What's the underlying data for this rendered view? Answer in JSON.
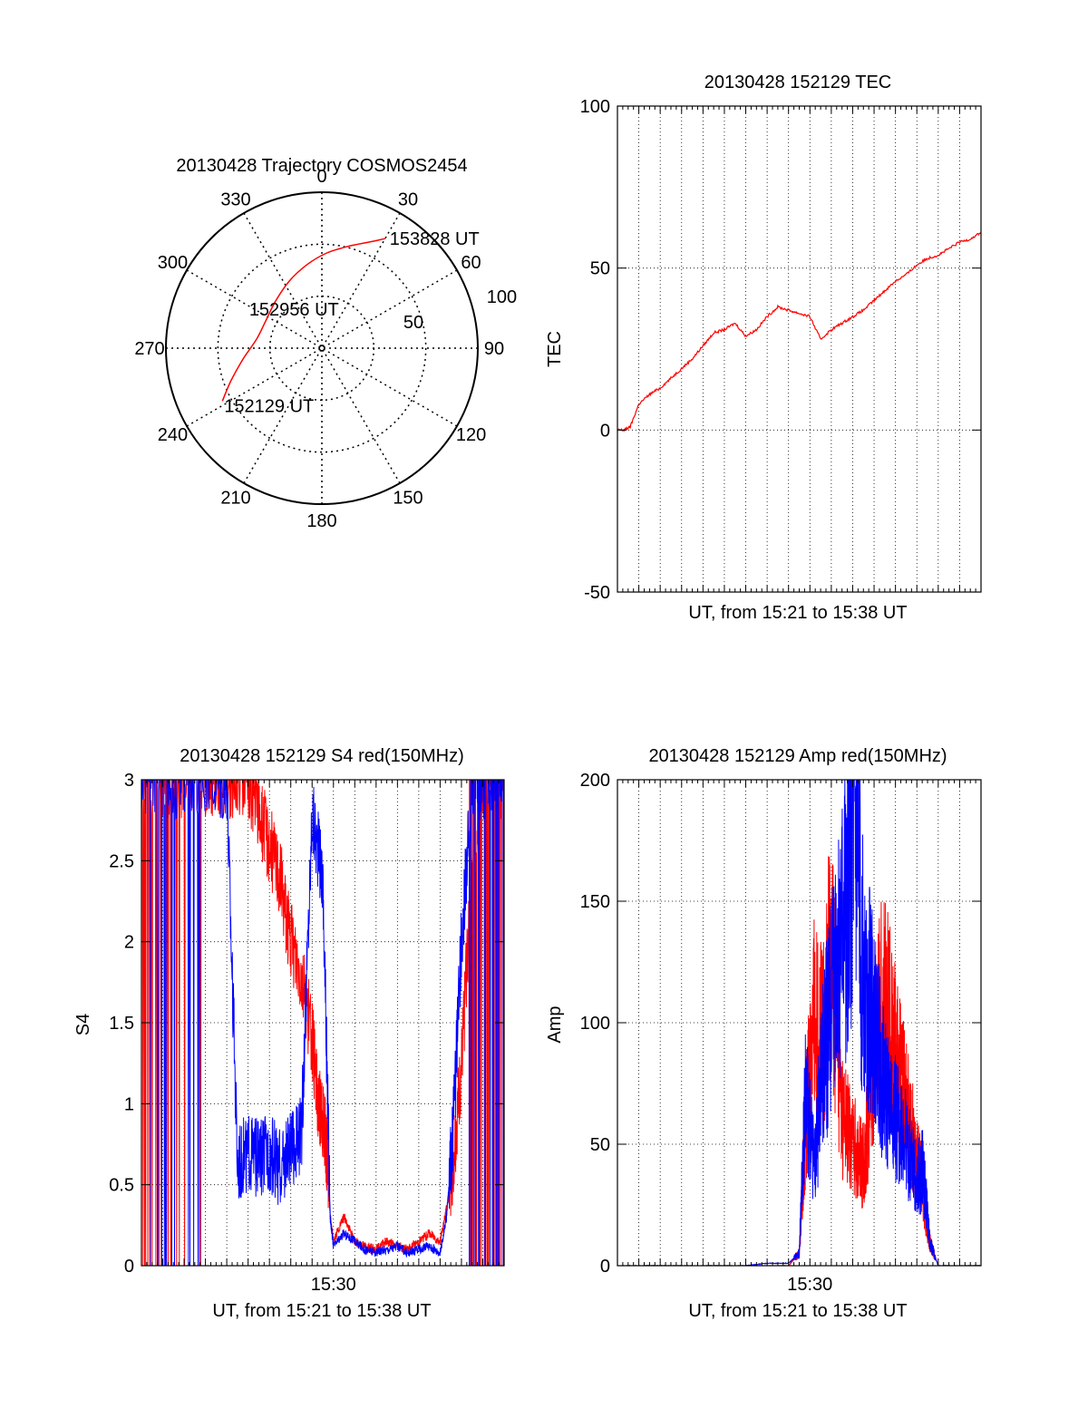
{
  "chart_data": [
    {
      "type": "polar",
      "title": "20130428 Trajectory COSMOS2454",
      "azimuth_ticks": [
        "0",
        "30",
        "60",
        "90",
        "120",
        "150",
        "180",
        "210",
        "240",
        "270",
        "300",
        "330"
      ],
      "radial_ticks": [
        "50",
        "100"
      ],
      "series": [
        {
          "color": "#ff0000",
          "points": [
            {
              "az": 242,
              "zen": 65
            },
            {
              "az": 250,
              "zen": 56
            },
            {
              "az": 262,
              "zen": 46
            },
            {
              "az": 278,
              "zen": 38
            },
            {
              "az": 295,
              "zen": 36
            },
            {
              "az": 315,
              "zen": 38
            },
            {
              "az": 334,
              "zen": 43
            },
            {
              "az": 350,
              "zen": 49
            },
            {
              "az": 3,
              "zen": 55
            },
            {
              "az": 15,
              "zen": 61
            },
            {
              "az": 24,
              "zen": 67
            },
            {
              "az": 30,
              "zen": 73
            }
          ]
        }
      ],
      "annotations": [
        {
          "text": "153828 UT",
          "az": 30,
          "zen": 73
        },
        {
          "text": "152956 UT",
          "az": 325,
          "zen": 28
        },
        {
          "text": "152129 UT",
          "az": 242,
          "zen": 65
        }
      ]
    },
    {
      "type": "line",
      "title": "20130428 152129 TEC",
      "xlabel": "UT, from 15:21 to 15:38 UT",
      "ylabel": "TEC",
      "ylim": [
        -50,
        100
      ],
      "yticks": [
        "-50",
        "0",
        "50",
        "100"
      ],
      "xlim_min": [
        0,
        17
      ],
      "grid": true,
      "series": [
        {
          "color": "#ff0000",
          "x": [
            0,
            0.3,
            0.6,
            1,
            1.5,
            2,
            2.5,
            3,
            3.5,
            4,
            4.5,
            5,
            5.5,
            6,
            6.5,
            7,
            7.5,
            8,
            8.5,
            9,
            9.5,
            10,
            10.5,
            11,
            11.5,
            12,
            12.5,
            13,
            13.5,
            14,
            14.5,
            15,
            15.5,
            16,
            16.5,
            17
          ],
          "values": [
            0,
            0,
            1,
            8,
            11,
            13,
            16,
            19,
            22,
            26,
            30,
            31,
            33,
            29,
            31,
            35,
            38,
            37,
            36,
            35,
            28,
            31,
            33,
            35,
            37,
            40,
            43,
            46,
            48,
            51,
            53,
            54,
            56,
            58,
            59,
            61
          ]
        }
      ]
    },
    {
      "type": "line",
      "title": "20130428 152129 S4 red(150MHz)",
      "xlabel": "UT, from 15:21 to 15:38 UT",
      "ylabel": "S4",
      "ylim": [
        0,
        3
      ],
      "yticks": [
        "0",
        "0.5",
        "1",
        "1.5",
        "2",
        "2.5",
        "3"
      ],
      "xticks": [
        {
          "x": 9,
          "label": "15:30"
        }
      ],
      "xlim_min": [
        0,
        17
      ],
      "grid": true,
      "series": [
        {
          "color": "#ff0000",
          "x": [
            0,
            1,
            2,
            3,
            4,
            5,
            5.5,
            6,
            6.5,
            7,
            7.5,
            8,
            8.3,
            8.5,
            8.7,
            8.85,
            9,
            9.5,
            10,
            10.5,
            11,
            11.5,
            12,
            12.5,
            13,
            13.5,
            14,
            14.3,
            14.6,
            15,
            15.5,
            16,
            16.5,
            17
          ],
          "values": [
            3,
            3,
            3,
            3,
            3,
            3,
            2.8,
            2.6,
            2.4,
            2.0,
            1.8,
            1.4,
            1.0,
            0.9,
            0.7,
            0.3,
            0.15,
            0.3,
            0.15,
            0.12,
            0.1,
            0.15,
            0.12,
            0.1,
            0.15,
            0.2,
            0.15,
            0.35,
            0.6,
            1.2,
            2.5,
            3,
            3,
            3
          ]
        },
        {
          "color": "#0000ff",
          "x": [
            0,
            1,
            2,
            3,
            4,
            4.5,
            5,
            5.5,
            6,
            6.5,
            7,
            7.5,
            8,
            8.5,
            8.85,
            9,
            9.5,
            10,
            10.5,
            11,
            11.5,
            12,
            12.5,
            13,
            13.5,
            14,
            14.3,
            14.6,
            15,
            15.5,
            16,
            16.5,
            17
          ],
          "values": [
            3,
            3,
            3,
            3,
            3,
            0.65,
            0.7,
            0.65,
            0.7,
            0.6,
            0.7,
            0.8,
            2.8,
            2.4,
            0.3,
            0.12,
            0.2,
            0.15,
            0.1,
            0.08,
            0.1,
            0.12,
            0.08,
            0.1,
            0.12,
            0.08,
            0.3,
            0.8,
            2.0,
            3,
            3,
            3,
            3
          ]
        }
      ]
    },
    {
      "type": "line",
      "title": "20130428 152129 Amp red(150MHz)",
      "xlabel": "UT, from 15:21 to 15:38 UT",
      "ylabel": "Amp",
      "ylim": [
        0,
        200
      ],
      "yticks": [
        "0",
        "50",
        "100",
        "150",
        "200"
      ],
      "xticks": [
        {
          "x": 9,
          "label": "15:30"
        }
      ],
      "xlim_min": [
        0,
        17
      ],
      "grid": true,
      "series": [
        {
          "color": "#ff0000",
          "x": [
            0,
            2,
            4,
            6,
            8,
            8.5,
            8.8,
            9.2,
            9.6,
            10,
            10.5,
            11,
            11.5,
            12,
            12.5,
            13,
            13.5,
            14,
            14.3,
            14.6,
            15,
            17
          ],
          "values": [
            0,
            0,
            0,
            0,
            0,
            5,
            60,
            100,
            90,
            130,
            60,
            50,
            40,
            90,
            110,
            85,
            65,
            45,
            30,
            10,
            0,
            0
          ]
        },
        {
          "color": "#0000ff",
          "x": [
            0,
            2,
            4,
            6,
            7,
            8,
            8.5,
            8.8,
            9.2,
            9.6,
            10,
            10.5,
            11,
            11.5,
            12,
            12.5,
            13,
            13.5,
            14,
            14.3,
            14.6,
            15,
            17
          ],
          "values": [
            0,
            0,
            0,
            0,
            1,
            1,
            5,
            70,
            40,
            80,
            110,
            130,
            180,
            120,
            100,
            70,
            60,
            50,
            35,
            40,
            10,
            0,
            0
          ]
        }
      ]
    }
  ]
}
